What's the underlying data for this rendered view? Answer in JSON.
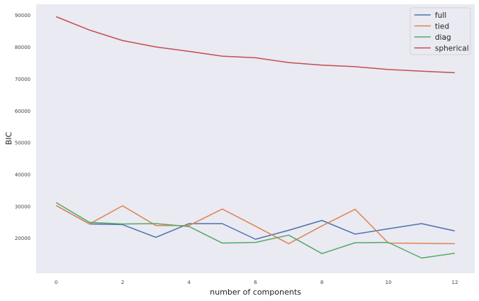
{
  "chart_data": {
    "type": "line",
    "title": "",
    "xlabel": "number of components",
    "ylabel": "BIC",
    "x": [
      0,
      1,
      2,
      3,
      4,
      5,
      6,
      7,
      8,
      9,
      10,
      11,
      12
    ],
    "xlim": [
      -0.6,
      12.6
    ],
    "ylim": [
      9000,
      93500
    ],
    "xticks": [
      0,
      2,
      4,
      6,
      8,
      10,
      12
    ],
    "yticks": [
      20000,
      30000,
      40000,
      50000,
      60000,
      70000,
      80000,
      90000
    ],
    "grid": false,
    "legend": "top-right",
    "background": "#eaeaf2",
    "series": [
      {
        "name": "full",
        "color": "#4c72b0",
        "values": [
          30300,
          24500,
          24300,
          20300,
          24600,
          24600,
          19700,
          22500,
          25600,
          21300,
          23000,
          24600,
          22300
        ]
      },
      {
        "name": "tied",
        "color": "#dd8452",
        "values": [
          30300,
          24500,
          30200,
          24000,
          24000,
          29200,
          23800,
          18300,
          23900,
          29100,
          18500,
          18400,
          18300
        ]
      },
      {
        "name": "diag",
        "color": "#55a868",
        "values": [
          31200,
          25000,
          24500,
          24600,
          23700,
          18500,
          18700,
          21000,
          15200,
          18600,
          18700,
          13800,
          15300
        ]
      },
      {
        "name": "spherical",
        "color": "#c44e52",
        "values": [
          89600,
          85400,
          82100,
          80100,
          78700,
          77200,
          76700,
          75200,
          74400,
          73900,
          73000,
          72500,
          72000
        ]
      }
    ]
  }
}
